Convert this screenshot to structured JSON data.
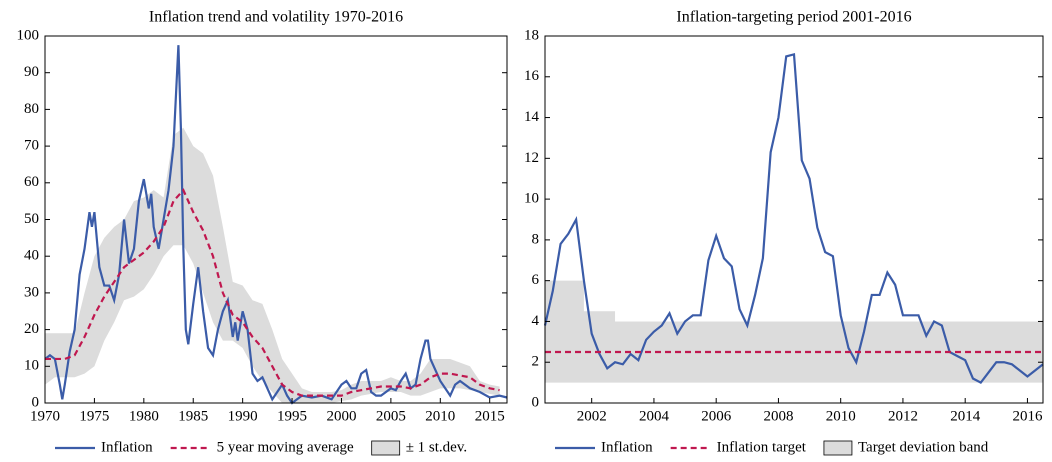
{
  "chart_data": [
    {
      "type": "line",
      "title": "Inflation trend and volatility 1970-2016",
      "xlim": [
        1970,
        2016.75
      ],
      "ylim": [
        0,
        100
      ],
      "xticks": [
        1970,
        1975,
        1980,
        1985,
        1990,
        1995,
        2000,
        2005,
        2010,
        2015
      ],
      "yticks": [
        0,
        10,
        20,
        30,
        40,
        50,
        60,
        70,
        80,
        90,
        100
      ],
      "x": [
        1970,
        1971,
        1972,
        1973,
        1974,
        1975,
        1976,
        1977,
        1978,
        1979,
        1980,
        1981,
        1982,
        1983,
        1984,
        1985,
        1986,
        1987,
        1988,
        1989,
        1990,
        1991,
        1992,
        1993,
        1994,
        1995,
        1996,
        1997,
        1998,
        1999,
        2000,
        2001,
        2002,
        2003,
        2004,
        2005,
        2006,
        2007,
        2008,
        2009,
        2010,
        2011,
        2012,
        2013,
        2014,
        2015,
        2016
      ],
      "series": [
        {
          "name": "Inflation",
          "color": "#3b5ca8",
          "x": [
            1970,
            1970.5,
            1971,
            1971.5,
            1971.75,
            1972,
            1972.5,
            1973,
            1973.5,
            1974,
            1974.5,
            1974.75,
            1975,
            1975.5,
            1976,
            1976.5,
            1977,
            1977.5,
            1978,
            1978.5,
            1979,
            1979.5,
            1980,
            1980.5,
            1980.75,
            1981,
            1981.5,
            1982,
            1982.5,
            1983,
            1983.5,
            1983.75,
            1984,
            1984.25,
            1984.5,
            1985,
            1985.5,
            1986,
            1986.5,
            1987,
            1987.5,
            1988,
            1988.5,
            1989,
            1989.25,
            1989.5,
            1990,
            1990.5,
            1991,
            1991.5,
            1992,
            1992.5,
            1993,
            1993.5,
            1994,
            1994.5,
            1995,
            1996,
            1997,
            1998,
            1999,
            2000,
            2000.5,
            2001,
            2001.5,
            2002,
            2002.5,
            2003,
            2003.5,
            2004,
            2005,
            2005.5,
            2006,
            2006.5,
            2007,
            2007.5,
            2008,
            2008.5,
            2008.75,
            2009,
            2009.5,
            2010,
            2011,
            2011.5,
            2012,
            2013,
            2014,
            2015,
            2016,
            2016.75
          ],
          "values": [
            12,
            13,
            12,
            5,
            1,
            5,
            14,
            20,
            35,
            42,
            52,
            48,
            52,
            37,
            32,
            32,
            28,
            35,
            50,
            38,
            42,
            55,
            61,
            53,
            57,
            48,
            42,
            50,
            58,
            70,
            97.5,
            75,
            42,
            20,
            16,
            27,
            37,
            25,
            15,
            13,
            20,
            25,
            28,
            18,
            22,
            17,
            25,
            20,
            8,
            6,
            7,
            4,
            1,
            3,
            5,
            2,
            0,
            2,
            1.5,
            2,
            1,
            5,
            6,
            4,
            4,
            8,
            9,
            3,
            2,
            2,
            4,
            3.5,
            6,
            8,
            4,
            5,
            12,
            17,
            17,
            12,
            9,
            6,
            2,
            5,
            6,
            4,
            3,
            1.5,
            2,
            1.5
          ]
        },
        {
          "name": "5 year moving average",
          "color": "#c0184f",
          "dashed": true,
          "values": [
            12,
            12,
            12,
            13,
            18,
            24,
            29,
            33,
            37,
            39,
            41,
            44,
            48,
            55,
            58,
            52,
            47,
            40,
            30,
            24,
            22,
            18,
            15,
            10,
            5,
            3,
            2,
            2,
            2,
            2,
            2,
            3,
            3.5,
            4,
            4.5,
            4.5,
            4.5,
            4,
            5,
            7,
            8,
            8,
            7.5,
            7,
            5,
            4,
            3.5
          ]
        },
        {
          "name": "± 1 st.dev.",
          "color": "#dcdcdc",
          "band": true,
          "upper": [
            19,
            19,
            19,
            19,
            30,
            40,
            45,
            48,
            50,
            55,
            56,
            58,
            56,
            73,
            75,
            70,
            68,
            62,
            48,
            33,
            32,
            28,
            27,
            20,
            12,
            8,
            4,
            3,
            3,
            3,
            3.5,
            5,
            6,
            6,
            6,
            7,
            6,
            6,
            8,
            12,
            12,
            12,
            11,
            10,
            6,
            5,
            4.5
          ],
          "lower": [
            5,
            7,
            7,
            7,
            8,
            10,
            17,
            22,
            28,
            29,
            31,
            35,
            40,
            43,
            43,
            38,
            30,
            22,
            17,
            17,
            15,
            10,
            6,
            3,
            0,
            0,
            0,
            0,
            0,
            0,
            0.5,
            1,
            2,
            2.5,
            3,
            3,
            3,
            2,
            2,
            3,
            4,
            4,
            4,
            3.5,
            3,
            2.5,
            2
          ]
        }
      ]
    },
    {
      "type": "line",
      "title": "Inflation-targeting period 2001-2016",
      "xlim": [
        2000.5,
        2016.5
      ],
      "ylim": [
        0,
        18
      ],
      "xticks": [
        2002,
        2004,
        2006,
        2008,
        2010,
        2012,
        2014,
        2016
      ],
      "yticks": [
        0,
        2,
        4,
        6,
        8,
        10,
        12,
        14,
        16,
        18
      ],
      "series": [
        {
          "name": "Inflation",
          "color": "#3b5ca8",
          "x": [
            2000.5,
            2000.75,
            2001,
            2001.25,
            2001.5,
            2001.75,
            2002,
            2002.25,
            2002.5,
            2002.75,
            2003,
            2003.25,
            2003.5,
            2003.75,
            2004,
            2004.25,
            2004.5,
            2004.75,
            2005,
            2005.25,
            2005.5,
            2005.75,
            2006,
            2006.25,
            2006.5,
            2006.75,
            2007,
            2007.25,
            2007.5,
            2007.75,
            2008,
            2008.25,
            2008.5,
            2008.75,
            2009,
            2009.25,
            2009.5,
            2009.75,
            2010,
            2010.25,
            2010.5,
            2010.75,
            2011,
            2011.25,
            2011.5,
            2011.75,
            2012,
            2012.25,
            2012.5,
            2012.75,
            2013,
            2013.25,
            2013.5,
            2013.75,
            2014,
            2014.25,
            2014.5,
            2014.75,
            2015,
            2015.25,
            2015.5,
            2015.75,
            2016,
            2016.25,
            2016.5
          ],
          "values": [
            3.8,
            5.5,
            7.8,
            8.3,
            9.0,
            6.0,
            3.4,
            2.4,
            1.7,
            2.0,
            1.9,
            2.4,
            2.1,
            3.1,
            3.5,
            3.8,
            4.4,
            3.4,
            4.0,
            4.3,
            4.3,
            7.0,
            8.2,
            7.1,
            6.7,
            4.6,
            3.8,
            5.3,
            7.1,
            12.3,
            14.0,
            17.0,
            17.1,
            11.9,
            11.0,
            8.6,
            7.4,
            7.2,
            4.3,
            2.7,
            2.0,
            3.5,
            5.3,
            5.3,
            6.4,
            5.8,
            4.3,
            4.3,
            4.3,
            3.3,
            4.0,
            3.8,
            2.5,
            2.3,
            2.1,
            1.2,
            1.0,
            1.5,
            2.0,
            2.0,
            1.9,
            1.6,
            1.3,
            1.6,
            1.9
          ]
        },
        {
          "name": "Inflation target",
          "color": "#c0184f",
          "dashed": true,
          "x": [
            2000.5,
            2016.5
          ],
          "values": [
            2.5,
            2.5
          ]
        },
        {
          "name": "Target deviation band",
          "color": "#dcdcdc",
          "band": true,
          "x": [
            2000.5,
            2001.75,
            2001.75,
            2002.75,
            2002.75,
            2016.5
          ],
          "upper": [
            6,
            6,
            4.5,
            4.5,
            4,
            4
          ],
          "lower": [
            1,
            1,
            1,
            1,
            1,
            1
          ]
        }
      ]
    }
  ]
}
